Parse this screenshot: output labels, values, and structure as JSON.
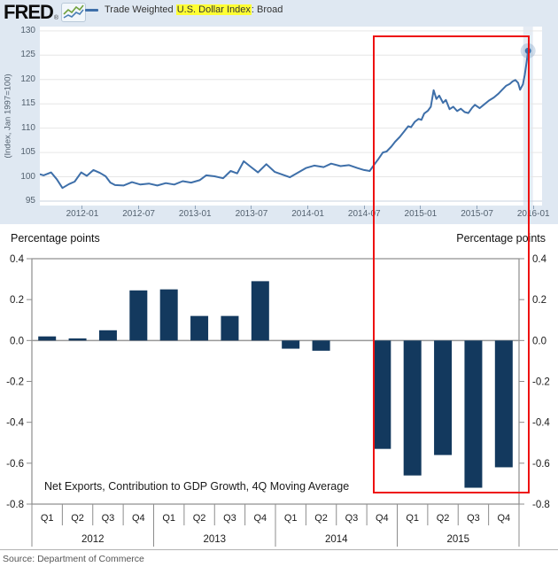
{
  "header": {
    "logo_text": "FRED",
    "registered_mark": "®",
    "logo_icon": "mini-line-chart-icon",
    "legend": {
      "swatch": "blue-line-dash",
      "prefix": "Trade Weighted ",
      "highlight": "U.S. Dollar Index",
      "suffix": ": Broad"
    }
  },
  "colors": {
    "top_background": "#dfe8f2",
    "line": "#3e6fa9",
    "bar": "#13395e",
    "annotation_red": "#ee1111",
    "legend_highlight": "#ffff33",
    "grid": "#e6e6e6",
    "axis_gray": "#8c8c8c"
  },
  "chart_data": [
    {
      "type": "line",
      "title": "Trade Weighted U.S. Dollar Index: Broad",
      "ylabel": "(Index, Jan 1997=100)",
      "ylim": [
        95,
        130
      ],
      "y_ticks": [
        130,
        125,
        120,
        115,
        110,
        105,
        100,
        95
      ],
      "x_tick_labels": [
        "2012-01",
        "2012-07",
        "2013-01",
        "2013-07",
        "2014-01",
        "2014-07",
        "2015-01",
        "2015-07",
        "2016-01"
      ],
      "x_tick_positions_months": [
        4.52,
        10.52,
        16.52,
        22.52,
        28.52,
        34.52,
        40.52,
        46.52,
        52.52
      ],
      "x_epoch": "2011-08",
      "x_range_months": [
        0,
        53.4
      ],
      "grid": "horizontal",
      "legend_position": "top-left",
      "series": [
        {
          "name": "Trade Weighted U.S. Dollar Index: Broad",
          "points": [
            [
              0.05,
              100.5
            ],
            [
              0.4,
              100.3
            ],
            [
              1.2,
              100.9
            ],
            [
              1.8,
              99.5
            ],
            [
              2.4,
              97.7
            ],
            [
              3.1,
              98.5
            ],
            [
              3.7,
              99.0
            ],
            [
              4.4,
              100.9
            ],
            [
              5.0,
              100.2
            ],
            [
              5.7,
              101.4
            ],
            [
              6.4,
              100.8
            ],
            [
              7.0,
              100.1
            ],
            [
              7.5,
              98.8
            ],
            [
              8.0,
              98.3
            ],
            [
              8.9,
              98.2
            ],
            [
              9.8,
              98.9
            ],
            [
              10.7,
              98.4
            ],
            [
              11.6,
              98.6
            ],
            [
              12.5,
              98.2
            ],
            [
              13.4,
              98.7
            ],
            [
              14.3,
              98.4
            ],
            [
              15.2,
              99.1
            ],
            [
              16.1,
              98.8
            ],
            [
              17.0,
              99.3
            ],
            [
              17.7,
              100.3
            ],
            [
              18.6,
              100.1
            ],
            [
              19.5,
              99.7
            ],
            [
              20.3,
              101.2
            ],
            [
              21.0,
              100.7
            ],
            [
              21.7,
              103.2
            ],
            [
              22.4,
              102.1
            ],
            [
              23.2,
              100.9
            ],
            [
              24.1,
              102.6
            ],
            [
              25.0,
              101.0
            ],
            [
              25.9,
              100.4
            ],
            [
              26.6,
              99.9
            ],
            [
              27.4,
              100.8
            ],
            [
              28.3,
              101.8
            ],
            [
              29.2,
              102.3
            ],
            [
              30.2,
              102.0
            ],
            [
              31.0,
              102.7
            ],
            [
              32.0,
              102.2
            ],
            [
              32.9,
              102.4
            ],
            [
              33.8,
              101.8
            ],
            [
              34.5,
              101.4
            ],
            [
              35.1,
              101.2
            ],
            [
              35.5,
              102.3
            ],
            [
              36.0,
              103.6
            ],
            [
              36.5,
              105.0
            ],
            [
              36.9,
              105.2
            ],
            [
              37.4,
              106.2
            ],
            [
              37.8,
              107.2
            ],
            [
              38.3,
              108.2
            ],
            [
              38.8,
              109.4
            ],
            [
              39.2,
              110.4
            ],
            [
              39.5,
              110.2
            ],
            [
              39.9,
              111.3
            ],
            [
              40.3,
              111.9
            ],
            [
              40.6,
              111.7
            ],
            [
              40.9,
              113.0
            ],
            [
              41.3,
              113.6
            ],
            [
              41.6,
              114.4
            ],
            [
              41.9,
              117.8
            ],
            [
              42.2,
              116.0
            ],
            [
              42.5,
              116.7
            ],
            [
              42.9,
              115.2
            ],
            [
              43.2,
              115.8
            ],
            [
              43.6,
              113.9
            ],
            [
              44.0,
              114.4
            ],
            [
              44.4,
              113.5
            ],
            [
              44.8,
              114.0
            ],
            [
              45.2,
              113.3
            ],
            [
              45.6,
              113.1
            ],
            [
              46.0,
              114.2
            ],
            [
              46.3,
              114.8
            ],
            [
              46.8,
              114.1
            ],
            [
              47.3,
              114.9
            ],
            [
              47.8,
              115.7
            ],
            [
              48.3,
              116.3
            ],
            [
              48.8,
              117.1
            ],
            [
              49.2,
              117.9
            ],
            [
              49.6,
              118.7
            ],
            [
              50.0,
              119.1
            ],
            [
              50.3,
              119.6
            ],
            [
              50.6,
              119.9
            ],
            [
              50.9,
              119.3
            ],
            [
              51.1,
              117.9
            ],
            [
              51.4,
              119.0
            ],
            [
              51.6,
              121.0
            ],
            [
              51.8,
              123.6
            ],
            [
              51.95,
              125.9
            ]
          ]
        }
      ],
      "last_observation": {
        "approx_date": "2016-01",
        "value": 125.9
      }
    },
    {
      "type": "bar",
      "categories": [
        "2012 Q1",
        "2012 Q2",
        "2012 Q3",
        "2012 Q4",
        "2013 Q1",
        "2013 Q2",
        "2013 Q3",
        "2013 Q4",
        "2014 Q1",
        "2014 Q2",
        "2014 Q3",
        "2014 Q4",
        "2015 Q1",
        "2015 Q2",
        "2015 Q3",
        "2015 Q4"
      ],
      "values": [
        0.02,
        0.01,
        0.05,
        0.245,
        0.25,
        0.12,
        0.12,
        0.29,
        -0.04,
        -0.05,
        0,
        -0.53,
        -0.66,
        -0.56,
        -0.72,
        -0.62
      ],
      "ylim": [
        -0.8,
        0.4
      ],
      "y_ticks": [
        0.4,
        0.2,
        0.0,
        -0.2,
        -0.4,
        -0.6,
        -0.8
      ],
      "ylabel_left": "Percentage points",
      "ylabel_right": "Percentage points",
      "caption": "Net Exports, Contribution to GDP Growth, 4Q Moving Average",
      "x_groups": [
        {
          "year": "2012",
          "quarters": [
            "Q1",
            "Q2",
            "Q3",
            "Q4"
          ]
        },
        {
          "year": "2013",
          "quarters": [
            "Q1",
            "Q2",
            "Q3",
            "Q4"
          ]
        },
        {
          "year": "2014",
          "quarters": [
            "Q1",
            "Q2",
            "Q3",
            "Q4"
          ]
        },
        {
          "year": "2015",
          "quarters": [
            "Q1",
            "Q2",
            "Q3",
            "Q4"
          ]
        }
      ],
      "grid": "none",
      "legend_position": "none"
    }
  ],
  "annotation_box": {
    "description": "Red rectangle highlighting late-2014 through early-2016 across both charts"
  },
  "source_note": "Source: Department of Commerce"
}
